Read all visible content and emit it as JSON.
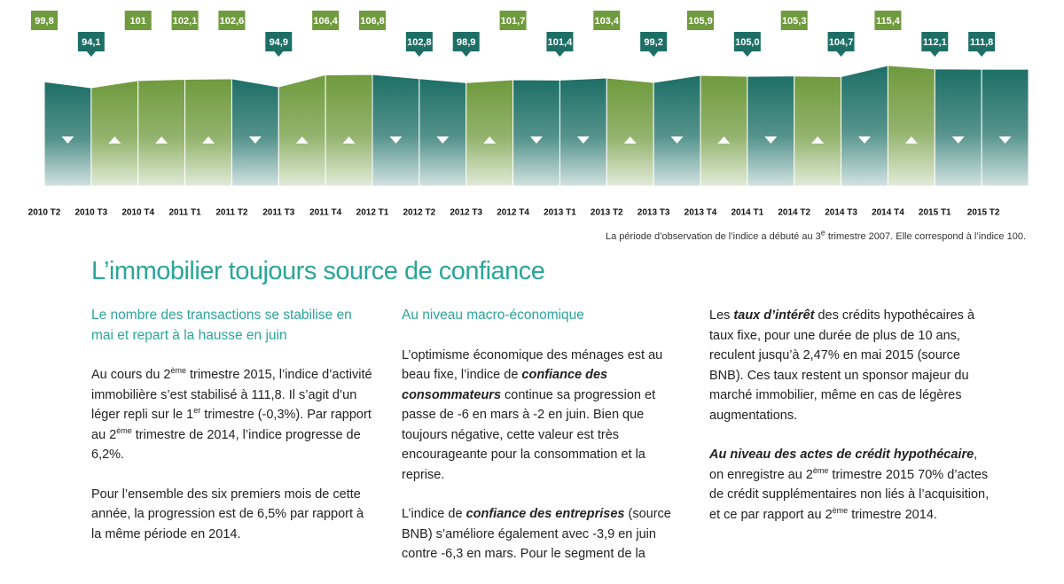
{
  "chart_data": {
    "type": "area",
    "categories": [
      "2010 T2",
      "2010 T3",
      "2010 T4",
      "2011 T1",
      "2011 T2",
      "2011 T3",
      "2011 T4",
      "2012 T1",
      "2012 T2",
      "2012 T3",
      "2012 T4",
      "2013 T1",
      "2013 T2",
      "2013 T3",
      "2013 T4",
      "2014 T1",
      "2014 T2",
      "2014 T3",
      "2014 T4",
      "2015 T1",
      "2015 T2"
    ],
    "values": [
      99.8,
      94.1,
      101,
      102.1,
      102.6,
      94.9,
      106.4,
      106.8,
      102.8,
      98.9,
      101.7,
      101.4,
      103.4,
      99.2,
      105.9,
      105.0,
      105.3,
      104.7,
      115.4,
      112.1,
      111.8
    ],
    "value_labels": [
      "99,8",
      "94,1",
      "101",
      "102,1",
      "102,6",
      "94,9",
      "106,4",
      "106,8",
      "102,8",
      "98,9",
      "101,7",
      "101,4",
      "103,4",
      "99,2",
      "105,9",
      "105,0",
      "105,3",
      "104,7",
      "115,4",
      "112,1",
      "111,8"
    ],
    "trends": [
      "down",
      "up",
      "up",
      "up",
      "down",
      "up",
      "up",
      "down",
      "down",
      "up",
      "down",
      "down",
      "up",
      "down",
      "up",
      "down",
      "up",
      "down",
      "up",
      "down",
      "down"
    ],
    "up_color": "#6f9a3d",
    "down_color": "#1d6f66",
    "ylim": [
      0,
      120
    ],
    "note": [
      {
        "text": "La période d’observation de l’indice a débuté au 3"
      },
      {
        "sup": "e"
      },
      {
        "text": " trimestre 2007. Elle correspond à l’indice 100."
      }
    ]
  },
  "article": {
    "title": "L’immobilier toujours source de confiance",
    "columns": [
      {
        "subtitle": "Le nombre des transactions se stabilise en mai et repart à la hausse en juin",
        "paragraphs": [
          [
            {
              "text": "Au cours du 2"
            },
            {
              "sup": "ème"
            },
            {
              "text": " trimestre 2015, l’indice d’activité immobilière s’est stabilisé à 111,8. Il s’agit d’un léger repli sur le 1"
            },
            {
              "sup": "er"
            },
            {
              "text": " trimestre (-0,3%). Par rapport au 2"
            },
            {
              "sup": "ème"
            },
            {
              "text": " trimestre de 2014, l’indice progresse de 6,2%."
            }
          ],
          [
            {
              "text": "Pour l’ensemble des six premiers mois de cette année, la progression est de 6,5% par rapport à la même période en 2014."
            }
          ]
        ]
      },
      {
        "subtitle": "Au niveau macro-économique",
        "paragraphs": [
          [
            {
              "text": "L’optimisme économique des ménages est au beau fixe, l’indice de "
            },
            {
              "em": "confiance des consommateurs"
            },
            {
              "text": " continue sa progression et passe de -6 en mars à -2 en juin. Bien que toujours négative, cette valeur est très encourageante pour la consommation et la reprise."
            }
          ],
          [
            {
              "text": "L’indice de "
            },
            {
              "em": "confiance des entreprises"
            },
            {
              "text": " (source BNB) s’améliore également  avec -3,9 en juin contre -6,3 en mars. Pour le segment de la"
            }
          ]
        ]
      },
      {
        "paragraphs": [
          [
            {
              "text": "Les "
            },
            {
              "em": "taux d’intérêt"
            },
            {
              "text": " des crédits hypothécaires à taux fixe, pour une durée de plus de 10 ans, reculent jusqu’à 2,47% en mai 2015 (source BNB). Ces taux restent un sponsor majeur du marché immobilier, même en cas de légères augmentations."
            }
          ],
          [
            {
              "em": "Au niveau des actes de crédit hypothécaire"
            },
            {
              "text": ", on enregistre au 2"
            },
            {
              "sup": "ème"
            },
            {
              "text": " trimestre 2015 70% d’actes de crédit supplémentaires non liés à l’acquisition, et ce par rapport au 2"
            },
            {
              "sup": "ème"
            },
            {
              "text": " trimestre 2014."
            }
          ]
        ]
      }
    ]
  }
}
